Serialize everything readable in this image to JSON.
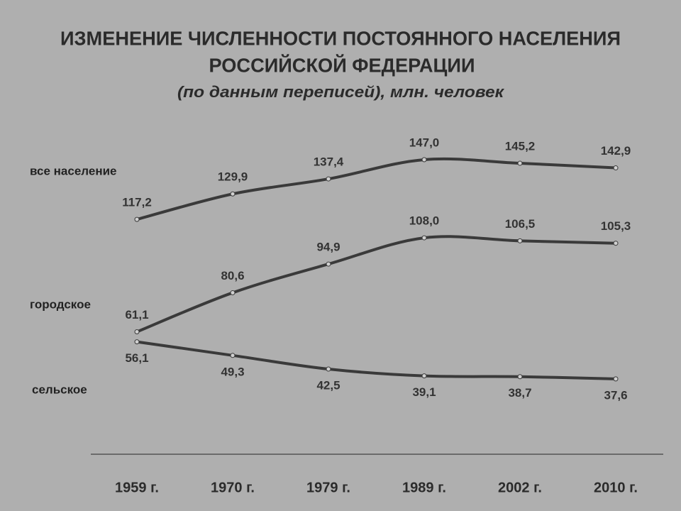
{
  "chart_data": {
    "type": "line",
    "title": [
      "ИЗМЕНЕНИЕ ЧИСЛЕННОСТИ ПОСТОЯННОГО НАСЕЛЕНИЯ",
      "РОССИЙСКОЙ ФЕДЕРАЦИИ"
    ],
    "subtitle": "(по данным переписей), млн. человек",
    "categories": [
      "1959 г.",
      "1970 г.",
      "1979 г.",
      "1989 г.",
      "2002 г.",
      "2010 г."
    ],
    "ylim": [
      0,
      150
    ],
    "series": [
      {
        "name": "все население",
        "color": "#3a3a3a",
        "values": [
          117.2,
          129.9,
          137.4,
          147.0,
          145.2,
          142.9
        ],
        "value_labels": [
          "117,2",
          "129,9",
          "137,4",
          "147,0",
          "145,2",
          "142,9"
        ]
      },
      {
        "name": "городское",
        "color": "#3a3a3a",
        "values": [
          61.1,
          80.6,
          94.9,
          108.0,
          106.5,
          105.3
        ],
        "value_labels": [
          "61,1",
          "80,6",
          "94,9",
          "108,0",
          "106,5",
          "105,3"
        ]
      },
      {
        "name": "сельское",
        "color": "#3a3a3a",
        "values": [
          56.1,
          49.3,
          42.5,
          39.1,
          38.7,
          37.6
        ],
        "value_labels": [
          "56,1",
          "49,3",
          "42,5",
          "39,1",
          "38,7",
          "37,6"
        ]
      }
    ]
  }
}
